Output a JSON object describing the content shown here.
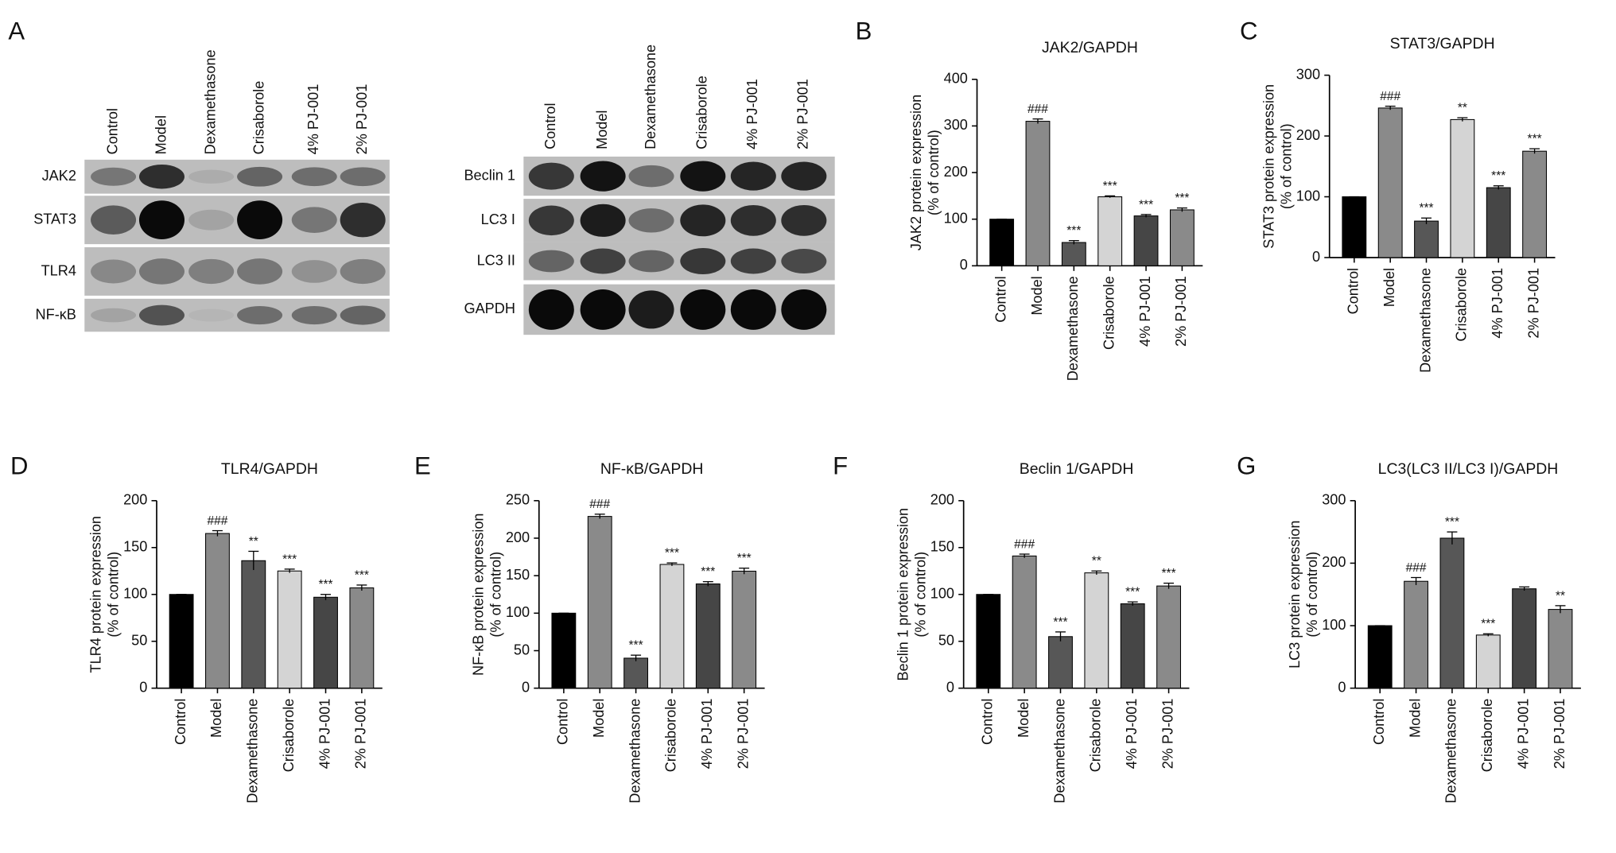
{
  "blots": {
    "panel": "A",
    "groups": [
      {
        "lanes": [
          "Control",
          "Model",
          "Dexamethasone",
          "Crisaborole",
          "4% PJ-001",
          "2% PJ-001"
        ],
        "rows": [
          "JAK2",
          "STAT3",
          "TLR4",
          "NF-κB"
        ]
      },
      {
        "lanes": [
          "Control",
          "Model",
          "Dexamethasone",
          "Crisaborole",
          "4% PJ-001",
          "2% PJ-001"
        ],
        "rows": [
          "Beclin 1",
          "LC3 I",
          "LC3 II",
          "GAPDH"
        ]
      }
    ]
  },
  "chart_data": [
    {
      "type": "bar",
      "panel": "B",
      "title": "JAK2/GAPDH",
      "ylabel": [
        "JAK2 protein expression",
        "(% of control)"
      ],
      "categories": [
        "Control",
        "Model",
        "Dexamethasone",
        "Crisaborole",
        "4% PJ-001",
        "2% PJ-001"
      ],
      "values": [
        100,
        310,
        50,
        148,
        107,
        120
      ],
      "errors": [
        0,
        5,
        4,
        2,
        3,
        4
      ],
      "annotations": [
        null,
        "###",
        "***",
        "***",
        "***",
        "***"
      ],
      "colors": [
        "#000000",
        "#8a8a8a",
        "#575757",
        "#d4d4d4",
        "#464646",
        "#8a8a8a"
      ],
      "ylim": [
        0,
        400
      ],
      "yticks": [
        0,
        100,
        200,
        300,
        400
      ]
    },
    {
      "type": "bar",
      "panel": "C",
      "title": "STAT3/GAPDH",
      "ylabel": [
        "STAT3 protein expression",
        "(% of control)"
      ],
      "categories": [
        "Control",
        "Model",
        "Dexamethasone",
        "Crisaborole",
        "4% PJ-001",
        "2% PJ-001"
      ],
      "values": [
        100,
        246,
        60,
        227,
        115,
        175
      ],
      "errors": [
        0,
        3,
        5,
        3,
        3,
        4
      ],
      "annotations": [
        null,
        "###",
        "***",
        "**",
        "***",
        "***"
      ],
      "colors": [
        "#000000",
        "#8a8a8a",
        "#575757",
        "#d4d4d4",
        "#464646",
        "#8a8a8a"
      ],
      "ylim": [
        0,
        300
      ],
      "yticks": [
        0,
        100,
        200,
        300
      ]
    },
    {
      "type": "bar",
      "panel": "D",
      "title": "TLR4/GAPDH",
      "ylabel": [
        "TLR4 protein expression",
        "(% of control)"
      ],
      "categories": [
        "Control",
        "Model",
        "Dexamethasone",
        "Crisaborole",
        "4% PJ-001",
        "2% PJ-001"
      ],
      "values": [
        100,
        165,
        136,
        125,
        97,
        107
      ],
      "errors": [
        0,
        3,
        10,
        2,
        3,
        3
      ],
      "annotations": [
        null,
        "###",
        "**",
        "***",
        "***",
        "***"
      ],
      "colors": [
        "#000000",
        "#8a8a8a",
        "#575757",
        "#d4d4d4",
        "#464646",
        "#8a8a8a"
      ],
      "ylim": [
        0,
        200
      ],
      "yticks": [
        0,
        50,
        100,
        150,
        200
      ]
    },
    {
      "type": "bar",
      "panel": "E",
      "title": "NF-κB/GAPDH",
      "ylabel": [
        "NF-κB protein expression",
        "(% of control)"
      ],
      "categories": [
        "Control",
        "Model",
        "Dexamethasone",
        "Crisaborole",
        "4% PJ-001",
        "2% PJ-001"
      ],
      "values": [
        100,
        229,
        40,
        165,
        139,
        156
      ],
      "errors": [
        0,
        3,
        4,
        2,
        3,
        4
      ],
      "annotations": [
        null,
        "###",
        "***",
        "***",
        "***",
        "***"
      ],
      "colors": [
        "#000000",
        "#8a8a8a",
        "#575757",
        "#d4d4d4",
        "#464646",
        "#8a8a8a"
      ],
      "ylim": [
        0,
        250
      ],
      "yticks": [
        0,
        50,
        100,
        150,
        200,
        250
      ]
    },
    {
      "type": "bar",
      "panel": "F",
      "title": "Beclin 1/GAPDH",
      "ylabel": [
        "Beclin 1 protein expression",
        "(% of control)"
      ],
      "categories": [
        "Control",
        "Model",
        "Dexamethasone",
        "Crisaborole",
        "4% PJ-001",
        "2% PJ-001"
      ],
      "values": [
        100,
        141,
        55,
        123,
        90,
        109
      ],
      "errors": [
        0,
        2,
        5,
        2,
        2,
        3
      ],
      "annotations": [
        null,
        "###",
        "***",
        "**",
        "***",
        "***"
      ],
      "colors": [
        "#000000",
        "#8a8a8a",
        "#575757",
        "#d4d4d4",
        "#464646",
        "#8a8a8a"
      ],
      "ylim": [
        0,
        200
      ],
      "yticks": [
        0,
        50,
        100,
        150,
        200
      ]
    },
    {
      "type": "bar",
      "panel": "G",
      "title": "LC3(LC3 II/LC3 I)/GAPDH",
      "ylabel": [
        "LC3 protein expression",
        "(% of control)"
      ],
      "categories": [
        "Control",
        "Model",
        "Dexamethasone",
        "Crisaborole",
        "4% PJ-001",
        "2% PJ-001"
      ],
      "values": [
        100,
        171,
        240,
        85,
        159,
        126
      ],
      "errors": [
        0,
        6,
        10,
        2,
        3,
        6
      ],
      "annotations": [
        null,
        "###",
        "***",
        "***",
        null,
        "**"
      ],
      "colors": [
        "#000000",
        "#8a8a8a",
        "#575757",
        "#d4d4d4",
        "#464646",
        "#8a8a8a"
      ],
      "ylim": [
        0,
        300
      ],
      "yticks": [
        0,
        100,
        200,
        300
      ]
    }
  ]
}
